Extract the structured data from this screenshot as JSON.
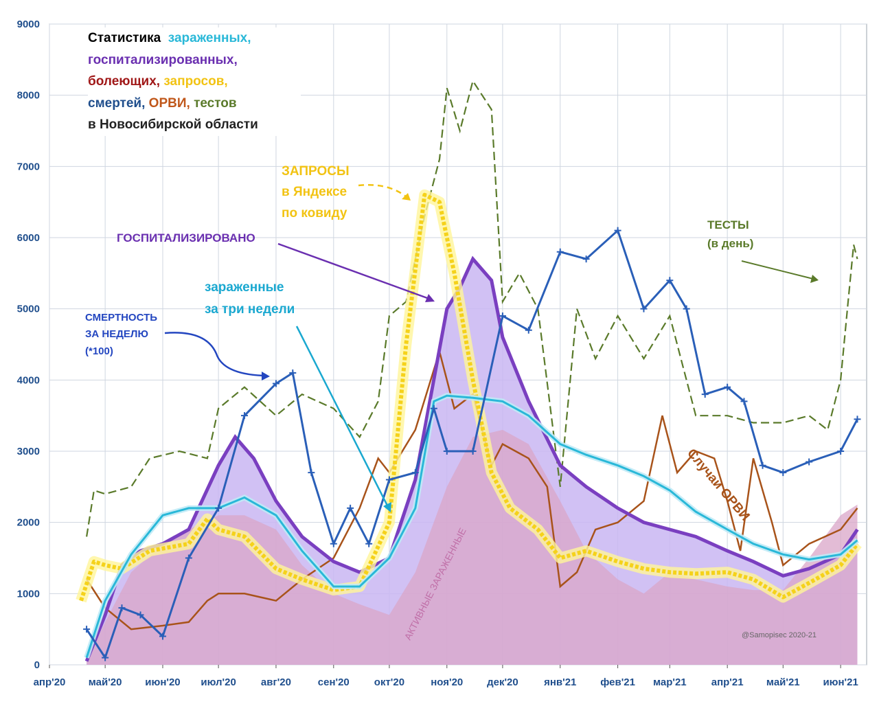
{
  "colors": {
    "infected": "#29b8d8",
    "hospitalized": "#7a3fc0",
    "hospitalized_fill": "#c9b6f2",
    "active_fill": "#d9a6c8",
    "sick": "#a01818",
    "queries": "#f5d21a",
    "deaths": "#2a5fb8",
    "arvi": "#a8531a",
    "tests": "#5a7a2a",
    "axis_text": "#1f4e8c",
    "grid": "#cfd6e0"
  },
  "title": {
    "prefix": "Статистика",
    "infected": "зараженных,",
    "hospitalized": "госпитализированных,",
    "sick": "болеющих,",
    "queries": "запросов,",
    "deaths": "смертей,",
    "arvi": "ОРВИ,",
    "tests": "тестов",
    "line_last": "в Новосибирской области"
  },
  "annotations": {
    "queries_l1": "ЗАПРОСЫ",
    "queries_l2": "в Яндексе",
    "queries_l3": "по ковиду",
    "hospitalized": "ГОСПИТАЛИЗИРОВАНО",
    "infected_l1": "зараженные",
    "infected_l2": "за три недели",
    "deaths_l1": "СМЕРТНОСТЬ",
    "deaths_l2": "ЗА НЕДЕЛЮ",
    "deaths_l3": "(*100)",
    "tests_l1": "ТЕСТЫ",
    "tests_l2": "(в день)",
    "arvi": "Случаи ОРВИ",
    "active": "АКТИВНЫЕ ЗАРАЖЕННЫЕ",
    "credit": "@Samopisec 2020-21"
  },
  "chart_data": {
    "type": "line",
    "title": "Статистика зараженных, госпитализированных, болеющих, запросов, смертей, ОРВИ, тестов в Новосибирской области",
    "x_axis_type": "date",
    "xlim": [
      "2020-04-01",
      "2021-06-15"
    ],
    "ylim": [
      0,
      9000
    ],
    "yticks": [
      0,
      1000,
      2000,
      3000,
      4000,
      5000,
      6000,
      7000,
      8000,
      9000
    ],
    "xticks": [
      {
        "date": "2020-04-01",
        "label": "апр'20"
      },
      {
        "date": "2020-05-01",
        "label": "май'20"
      },
      {
        "date": "2020-06-01",
        "label": "июн'20"
      },
      {
        "date": "2020-07-01",
        "label": "июл'20"
      },
      {
        "date": "2020-08-01",
        "label": "авг'20"
      },
      {
        "date": "2020-09-01",
        "label": "сен'20"
      },
      {
        "date": "2020-10-01",
        "label": "окт'20"
      },
      {
        "date": "2020-11-01",
        "label": "ноя'20"
      },
      {
        "date": "2020-12-01",
        "label": "дек'20"
      },
      {
        "date": "2021-01-01",
        "label": "янв'21"
      },
      {
        "date": "2021-02-01",
        "label": "фев'21"
      },
      {
        "date": "2021-03-01",
        "label": "мар'21"
      },
      {
        "date": "2021-04-01",
        "label": "апр'21"
      },
      {
        "date": "2021-05-01",
        "label": "май'21"
      },
      {
        "date": "2021-06-01",
        "label": "июн'21"
      }
    ],
    "grid": true,
    "series": [
      {
        "key": "active",
        "style": "area",
        "points": [
          [
            "2020-04-21",
            50
          ],
          [
            "2020-05-01",
            600
          ],
          [
            "2020-05-15",
            1300
          ],
          [
            "2020-06-01",
            1700
          ],
          [
            "2020-06-15",
            1900
          ],
          [
            "2020-07-01",
            2100
          ],
          [
            "2020-07-15",
            2100
          ],
          [
            "2020-08-01",
            1900
          ],
          [
            "2020-08-15",
            1400
          ],
          [
            "2020-09-01",
            1000
          ],
          [
            "2020-09-15",
            850
          ],
          [
            "2020-10-01",
            700
          ],
          [
            "2020-10-15",
            1300
          ],
          [
            "2020-11-01",
            2500
          ],
          [
            "2020-11-15",
            3200
          ],
          [
            "2020-12-01",
            3300
          ],
          [
            "2020-12-15",
            3100
          ],
          [
            "2021-01-01",
            2300
          ],
          [
            "2021-01-15",
            1600
          ],
          [
            "2021-02-01",
            1200
          ],
          [
            "2021-02-15",
            1000
          ],
          [
            "2021-03-01",
            1300
          ],
          [
            "2021-03-15",
            1200
          ],
          [
            "2021-04-01",
            1100
          ],
          [
            "2021-04-15",
            1050
          ],
          [
            "2021-05-01",
            1050
          ],
          [
            "2021-05-15",
            1500
          ],
          [
            "2021-06-01",
            2100
          ],
          [
            "2021-06-10",
            2250
          ]
        ]
      },
      {
        "key": "hospitalized",
        "style": "area-line",
        "points": [
          [
            "2020-04-21",
            50
          ],
          [
            "2020-05-01",
            700
          ],
          [
            "2020-05-10",
            1400
          ],
          [
            "2020-05-20",
            1600
          ],
          [
            "2020-06-01",
            1700
          ],
          [
            "2020-06-15",
            1900
          ],
          [
            "2020-07-01",
            2800
          ],
          [
            "2020-07-10",
            3200
          ],
          [
            "2020-07-20",
            2900
          ],
          [
            "2020-08-01",
            2300
          ],
          [
            "2020-08-15",
            1800
          ],
          [
            "2020-09-01",
            1450
          ],
          [
            "2020-09-15",
            1300
          ],
          [
            "2020-10-01",
            1500
          ],
          [
            "2020-10-15",
            2600
          ],
          [
            "2020-11-01",
            5000
          ],
          [
            "2020-11-08",
            5300
          ],
          [
            "2020-11-15",
            5700
          ],
          [
            "2020-11-25",
            5400
          ],
          [
            "2020-12-01",
            4600
          ],
          [
            "2020-12-15",
            3700
          ],
          [
            "2021-01-01",
            2800
          ],
          [
            "2021-01-15",
            2500
          ],
          [
            "2021-02-01",
            2200
          ],
          [
            "2021-02-15",
            2000
          ],
          [
            "2021-03-01",
            1900
          ],
          [
            "2021-03-15",
            1800
          ],
          [
            "2021-04-01",
            1600
          ],
          [
            "2021-04-15",
            1450
          ],
          [
            "2021-05-01",
            1250
          ],
          [
            "2021-05-15",
            1350
          ],
          [
            "2021-06-01",
            1550
          ],
          [
            "2021-06-10",
            1900
          ]
        ]
      },
      {
        "key": "infected",
        "style": "line",
        "points": [
          [
            "2020-04-21",
            100
          ],
          [
            "2020-05-01",
            900
          ],
          [
            "2020-05-15",
            1550
          ],
          [
            "2020-06-01",
            2100
          ],
          [
            "2020-06-15",
            2200
          ],
          [
            "2020-07-01",
            2200
          ],
          [
            "2020-07-15",
            2350
          ],
          [
            "2020-08-01",
            2100
          ],
          [
            "2020-08-15",
            1600
          ],
          [
            "2020-09-01",
            1100
          ],
          [
            "2020-09-15",
            1100
          ],
          [
            "2020-10-01",
            1500
          ],
          [
            "2020-10-15",
            2200
          ],
          [
            "2020-10-25",
            3700
          ],
          [
            "2020-11-01",
            3780
          ],
          [
            "2020-11-15",
            3750
          ],
          [
            "2020-12-01",
            3700
          ],
          [
            "2020-12-15",
            3500
          ],
          [
            "2021-01-01",
            3100
          ],
          [
            "2021-01-15",
            2950
          ],
          [
            "2021-02-01",
            2800
          ],
          [
            "2021-02-15",
            2650
          ],
          [
            "2021-03-01",
            2450
          ],
          [
            "2021-03-15",
            2150
          ],
          [
            "2021-04-01",
            1900
          ],
          [
            "2021-04-15",
            1700
          ],
          [
            "2021-05-01",
            1550
          ],
          [
            "2021-05-15",
            1480
          ],
          [
            "2021-06-01",
            1550
          ],
          [
            "2021-06-10",
            1750
          ]
        ]
      },
      {
        "key": "queries",
        "style": "glow-line",
        "points": [
          [
            "2020-04-18",
            900
          ],
          [
            "2020-04-25",
            1450
          ],
          [
            "2020-05-01",
            1400
          ],
          [
            "2020-05-10",
            1350
          ],
          [
            "2020-05-25",
            1600
          ],
          [
            "2020-06-15",
            1700
          ],
          [
            "2020-06-25",
            2050
          ],
          [
            "2020-07-01",
            1900
          ],
          [
            "2020-07-15",
            1800
          ],
          [
            "2020-08-01",
            1350
          ],
          [
            "2020-08-15",
            1200
          ],
          [
            "2020-09-01",
            1050
          ],
          [
            "2020-09-15",
            1100
          ],
          [
            "2020-10-01",
            2000
          ],
          [
            "2020-10-10",
            4500
          ],
          [
            "2020-10-20",
            6600
          ],
          [
            "2020-10-28",
            6500
          ],
          [
            "2020-11-05",
            5500
          ],
          [
            "2020-11-15",
            4000
          ],
          [
            "2020-11-25",
            2700
          ],
          [
            "2020-12-05",
            2200
          ],
          [
            "2020-12-20",
            1900
          ],
          [
            "2021-01-01",
            1500
          ],
          [
            "2021-01-15",
            1600
          ],
          [
            "2021-02-01",
            1450
          ],
          [
            "2021-02-15",
            1350
          ],
          [
            "2021-03-01",
            1300
          ],
          [
            "2021-03-15",
            1280
          ],
          [
            "2021-04-01",
            1300
          ],
          [
            "2021-04-15",
            1200
          ],
          [
            "2021-05-01",
            950
          ],
          [
            "2021-05-15",
            1150
          ],
          [
            "2021-06-01",
            1400
          ],
          [
            "2021-06-10",
            1700
          ]
        ]
      },
      {
        "key": "tests",
        "style": "dashed",
        "points": [
          [
            "2020-04-21",
            1800
          ],
          [
            "2020-04-25",
            2450
          ],
          [
            "2020-05-01",
            2400
          ],
          [
            "2020-05-15",
            2500
          ],
          [
            "2020-05-25",
            2900
          ],
          [
            "2020-06-10",
            3000
          ],
          [
            "2020-06-25",
            2900
          ],
          [
            "2020-07-01",
            3600
          ],
          [
            "2020-07-15",
            3900
          ],
          [
            "2020-08-01",
            3500
          ],
          [
            "2020-08-15",
            3800
          ],
          [
            "2020-09-01",
            3600
          ],
          [
            "2020-09-15",
            3200
          ],
          [
            "2020-09-25",
            3700
          ],
          [
            "2020-10-01",
            4900
          ],
          [
            "2020-10-10",
            5100
          ],
          [
            "2020-10-20",
            6300
          ],
          [
            "2020-10-28",
            7100
          ],
          [
            "2020-11-01",
            8100
          ],
          [
            "2020-11-08",
            7500
          ],
          [
            "2020-11-15",
            8200
          ],
          [
            "2020-11-25",
            7800
          ],
          [
            "2020-12-01",
            5100
          ],
          [
            "2020-12-10",
            5500
          ],
          [
            "2020-12-20",
            5000
          ],
          [
            "2021-01-01",
            2500
          ],
          [
            "2021-01-10",
            5000
          ],
          [
            "2021-01-20",
            4300
          ],
          [
            "2021-02-01",
            4900
          ],
          [
            "2021-02-15",
            4300
          ],
          [
            "2021-03-01",
            4900
          ],
          [
            "2021-03-15",
            3500
          ],
          [
            "2021-04-01",
            3500
          ],
          [
            "2021-04-15",
            3400
          ],
          [
            "2021-05-01",
            3400
          ],
          [
            "2021-05-15",
            3500
          ],
          [
            "2021-05-25",
            3300
          ],
          [
            "2021-06-01",
            4000
          ],
          [
            "2021-06-05",
            5100
          ],
          [
            "2021-06-08",
            5900
          ],
          [
            "2021-06-10",
            5700
          ]
        ]
      },
      {
        "key": "deaths",
        "style": "cross-line",
        "points": [
          [
            "2020-04-21",
            500
          ],
          [
            "2020-05-01",
            100
          ],
          [
            "2020-05-10",
            800
          ],
          [
            "2020-05-20",
            700
          ],
          [
            "2020-06-01",
            400
          ],
          [
            "2020-06-15",
            1500
          ],
          [
            "2020-07-01",
            2200
          ],
          [
            "2020-07-15",
            3500
          ],
          [
            "2020-08-01",
            3950
          ],
          [
            "2020-08-10",
            4100
          ],
          [
            "2020-08-20",
            2700
          ],
          [
            "2020-09-01",
            1700
          ],
          [
            "2020-09-10",
            2200
          ],
          [
            "2020-09-20",
            1700
          ],
          [
            "2020-10-01",
            2600
          ],
          [
            "2020-10-15",
            2700
          ],
          [
            "2020-10-25",
            3600
          ],
          [
            "2020-11-01",
            3000
          ],
          [
            "2020-11-15",
            3000
          ],
          [
            "2020-12-01",
            4900
          ],
          [
            "2020-12-15",
            4700
          ],
          [
            "2021-01-01",
            5800
          ],
          [
            "2021-01-15",
            5700
          ],
          [
            "2021-02-01",
            6100
          ],
          [
            "2021-02-15",
            5000
          ],
          [
            "2021-03-01",
            5400
          ],
          [
            "2021-03-10",
            5000
          ],
          [
            "2021-03-20",
            3800
          ],
          [
            "2021-04-01",
            3900
          ],
          [
            "2021-04-10",
            3700
          ],
          [
            "2021-04-20",
            2800
          ],
          [
            "2021-05-01",
            2700
          ],
          [
            "2021-05-15",
            2850
          ],
          [
            "2021-06-01",
            3000
          ],
          [
            "2021-06-10",
            3450
          ]
        ]
      },
      {
        "key": "arvi",
        "style": "line",
        "points": [
          [
            "2020-04-21",
            1200
          ],
          [
            "2020-05-01",
            800
          ],
          [
            "2020-05-15",
            500
          ],
          [
            "2020-06-01",
            550
          ],
          [
            "2020-06-15",
            600
          ],
          [
            "2020-06-25",
            900
          ],
          [
            "2020-07-01",
            1000
          ],
          [
            "2020-07-15",
            1000
          ],
          [
            "2020-08-01",
            900
          ],
          [
            "2020-08-15",
            1200
          ],
          [
            "2020-09-01",
            1500
          ],
          [
            "2020-09-15",
            2200
          ],
          [
            "2020-09-25",
            2900
          ],
          [
            "2020-10-01",
            2700
          ],
          [
            "2020-10-15",
            3300
          ],
          [
            "2020-10-28",
            4400
          ],
          [
            "2020-11-05",
            3600
          ],
          [
            "2020-11-15",
            3800
          ],
          [
            "2020-11-25",
            2800
          ],
          [
            "2020-12-01",
            3100
          ],
          [
            "2020-12-15",
            2900
          ],
          [
            "2020-12-25",
            2500
          ],
          [
            "2021-01-01",
            1100
          ],
          [
            "2021-01-10",
            1300
          ],
          [
            "2021-01-20",
            1900
          ],
          [
            "2021-02-01",
            2000
          ],
          [
            "2021-02-15",
            2300
          ],
          [
            "2021-02-25",
            3500
          ],
          [
            "2021-03-05",
            2700
          ],
          [
            "2021-03-15",
            3000
          ],
          [
            "2021-03-25",
            2900
          ],
          [
            "2021-04-01",
            2300
          ],
          [
            "2021-04-08",
            1600
          ],
          [
            "2021-04-15",
            2900
          ],
          [
            "2021-04-25",
            2000
          ],
          [
            "2021-05-01",
            1400
          ],
          [
            "2021-05-15",
            1700
          ],
          [
            "2021-06-01",
            1900
          ],
          [
            "2021-06-10",
            2200
          ]
        ]
      }
    ]
  }
}
